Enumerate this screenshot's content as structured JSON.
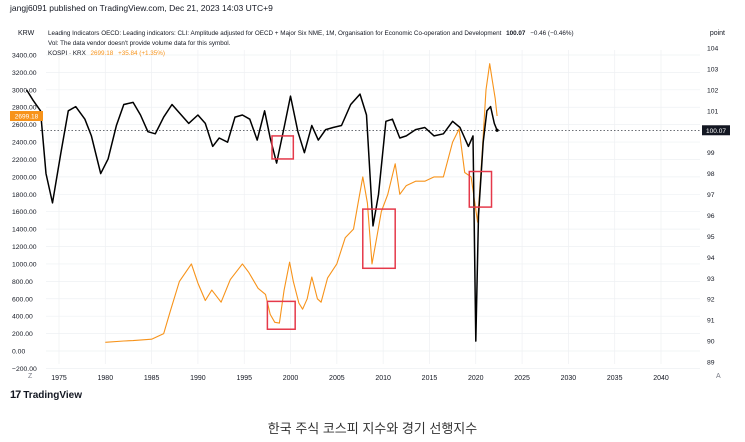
{
  "publisher": "jangj6091 published on TradingView.com, Dec 21, 2023 14:03 UTC+9",
  "brand": "TradingView",
  "caption": "한국 주식 코스피 지수와 경기 선행지수",
  "header": {
    "left_unit": "KRW",
    "right_unit": "point",
    "z_label": "Z",
    "a_label": "A"
  },
  "legend": {
    "line1_name": "Leading Indicators OECD: Leading indicators: CLI: Amplitude adjusted for OECD + Major Six NME, 1M, Organisation for Economic Co-operation and Development",
    "line1_value": "100.07",
    "line1_change": "−0.46 (−0.46%)",
    "line2": "Vol: The data vendor doesn't provide volume data for this symbol.",
    "line3_name": "KOSPI · KRX",
    "line3_value": "2699.18",
    "line3_change": "+35.84 (+1.35%)"
  },
  "colors": {
    "kospi": "#f7931a",
    "cli": "#000000",
    "highlight": "#e5394a",
    "grid": "#eef0f3",
    "axis_text": "#131722",
    "price_tag_bg": "#f7931a"
  },
  "chart_data": {
    "type": "line",
    "x_axis": {
      "ticks": [
        1975,
        1980,
        1985,
        1990,
        1995,
        2000,
        2005,
        2010,
        2015,
        2020,
        2025,
        2030,
        2035,
        2040
      ]
    },
    "left_axis": {
      "ticks": [
        "3400.00",
        "3200.00",
        "3000.00",
        "2800.00",
        "2600.00",
        "2400.00",
        "2200.00",
        "2000.00",
        "1800.00",
        "1600.00",
        "1400.00",
        "1200.00",
        "1000.00",
        "800.00",
        "600.00",
        "400.00",
        "200.00",
        "0.00",
        "−200.00"
      ],
      "range": [
        -200,
        3400
      ]
    },
    "right_axis": {
      "ticks": [
        "104",
        "103",
        "102",
        "101",
        "100",
        "99",
        "98",
        "97",
        "96",
        "95",
        "94",
        "93",
        "92",
        "91",
        "90",
        "89"
      ],
      "range": [
        88.7,
        104.2
      ]
    },
    "series": [
      {
        "name": "KOSPI · KRX",
        "axis": "left",
        "points": [
          [
            1980,
            100
          ],
          [
            1982,
            115
          ],
          [
            1983,
            120
          ],
          [
            1985,
            135
          ],
          [
            1986.3,
            200
          ],
          [
            1987,
            450
          ],
          [
            1988,
            800
          ],
          [
            1989.3,
            1000
          ],
          [
            1990,
            780
          ],
          [
            1990.8,
            580
          ],
          [
            1991.5,
            700
          ],
          [
            1992.5,
            560
          ],
          [
            1993.5,
            820
          ],
          [
            1994.8,
            1000
          ],
          [
            1995.5,
            900
          ],
          [
            1996.5,
            720
          ],
          [
            1997.3,
            650
          ],
          [
            1997.8,
            420
          ],
          [
            1998.3,
            330
          ],
          [
            1998.8,
            320
          ],
          [
            1999.3,
            700
          ],
          [
            1999.9,
            1020
          ],
          [
            2000.3,
            800
          ],
          [
            2000.9,
            550
          ],
          [
            2001.3,
            480
          ],
          [
            2001.8,
            600
          ],
          [
            2002.3,
            850
          ],
          [
            2002.9,
            600
          ],
          [
            2003.3,
            560
          ],
          [
            2004,
            840
          ],
          [
            2005,
            1000
          ],
          [
            2005.9,
            1300
          ],
          [
            2006.8,
            1400
          ],
          [
            2007.3,
            1700
          ],
          [
            2007.8,
            2000
          ],
          [
            2008.3,
            1700
          ],
          [
            2008.8,
            1000
          ],
          [
            2009.3,
            1300
          ],
          [
            2009.8,
            1600
          ],
          [
            2010.5,
            1800
          ],
          [
            2011.3,
            2150
          ],
          [
            2011.8,
            1800
          ],
          [
            2012.5,
            1900
          ],
          [
            2013.5,
            1950
          ],
          [
            2014.5,
            1950
          ],
          [
            2015.5,
            2000
          ],
          [
            2016.5,
            2000
          ],
          [
            2017.5,
            2400
          ],
          [
            2018.2,
            2550
          ],
          [
            2018.8,
            2050
          ],
          [
            2019.5,
            2000
          ],
          [
            2020.2,
            1480
          ],
          [
            2020.7,
            2300
          ],
          [
            2021.1,
            3000
          ],
          [
            2021.5,
            3300
          ],
          [
            2021.8,
            3100
          ],
          [
            2022.1,
            2900
          ],
          [
            2022.3,
            2699.18
          ]
        ]
      },
      {
        "name": "Leading Indicators OECD: Leading indicators: CLI",
        "axis": "right",
        "points": [
          [
            1971.5,
            102
          ],
          [
            1972.2,
            101.5
          ],
          [
            1973,
            101
          ],
          [
            1973.6,
            98
          ],
          [
            1974.3,
            96.6
          ],
          [
            1975.2,
            99
          ],
          [
            1976,
            101
          ],
          [
            1976.8,
            101.2
          ],
          [
            1977.8,
            100.6
          ],
          [
            1978.5,
            99.8
          ],
          [
            1979.5,
            98
          ],
          [
            1980.3,
            98.7
          ],
          [
            1981.2,
            100.3
          ],
          [
            1982,
            101.3
          ],
          [
            1983,
            101.4
          ],
          [
            1983.8,
            100.8
          ],
          [
            1984.6,
            100
          ],
          [
            1985.4,
            99.9
          ],
          [
            1986.3,
            100.7
          ],
          [
            1987.2,
            101.3
          ],
          [
            1988,
            100.9
          ],
          [
            1989,
            100.4
          ],
          [
            1990,
            100.8
          ],
          [
            1990.8,
            100.4
          ],
          [
            1991.6,
            99.3
          ],
          [
            1992.3,
            99.7
          ],
          [
            1993.2,
            99.5
          ],
          [
            1994,
            100.7
          ],
          [
            1994.8,
            100.8
          ],
          [
            1995.6,
            100.6
          ],
          [
            1996.4,
            99.6
          ],
          [
            1997.2,
            101
          ],
          [
            1997.8,
            99.7
          ],
          [
            1998.5,
            98.5
          ],
          [
            1999.3,
            100.2
          ],
          [
            2000,
            101.7
          ],
          [
            2000.8,
            100
          ],
          [
            2001.5,
            99
          ],
          [
            2002.3,
            100.3
          ],
          [
            2003,
            99.6
          ],
          [
            2003.8,
            100.1
          ],
          [
            2004.6,
            100.2
          ],
          [
            2005.5,
            100.3
          ],
          [
            2006.5,
            101.3
          ],
          [
            2007.5,
            101.8
          ],
          [
            2008.2,
            100.8
          ],
          [
            2008.9,
            95.5
          ],
          [
            2009.5,
            97
          ],
          [
            2010.3,
            100.5
          ],
          [
            2011,
            100.6
          ],
          [
            2011.8,
            99.7
          ],
          [
            2012.5,
            99.8
          ],
          [
            2013.5,
            100.1
          ],
          [
            2014.5,
            100.2
          ],
          [
            2015.5,
            99.8
          ],
          [
            2016.5,
            99.9
          ],
          [
            2017.5,
            100.5
          ],
          [
            2018.3,
            100.2
          ],
          [
            2019.2,
            99.3
          ],
          [
            2019.7,
            99.8
          ],
          [
            2020,
            90
          ],
          [
            2020.3,
            96
          ],
          [
            2020.8,
            99.5
          ],
          [
            2021.2,
            101
          ],
          [
            2021.6,
            101.2
          ],
          [
            2022,
            100.4
          ],
          [
            2022.3,
            100.07
          ]
        ]
      }
    ],
    "highlight_boxes": [
      {
        "x_range": [
          1998,
          2000.3
        ],
        "axis": "right",
        "y_range": [
          98.7,
          99.8
        ]
      },
      {
        "x_range": [
          1997.5,
          2000.5
        ],
        "axis": "left",
        "y_range": [
          250,
          570
        ]
      },
      {
        "x_range": [
          2007.8,
          2011.3
        ],
        "axis": "left",
        "y_range": [
          950,
          1630
        ]
      },
      {
        "x_range": [
          2019.3,
          2021.7
        ],
        "axis": "right",
        "y_range": [
          96.4,
          98.1
        ]
      }
    ]
  }
}
